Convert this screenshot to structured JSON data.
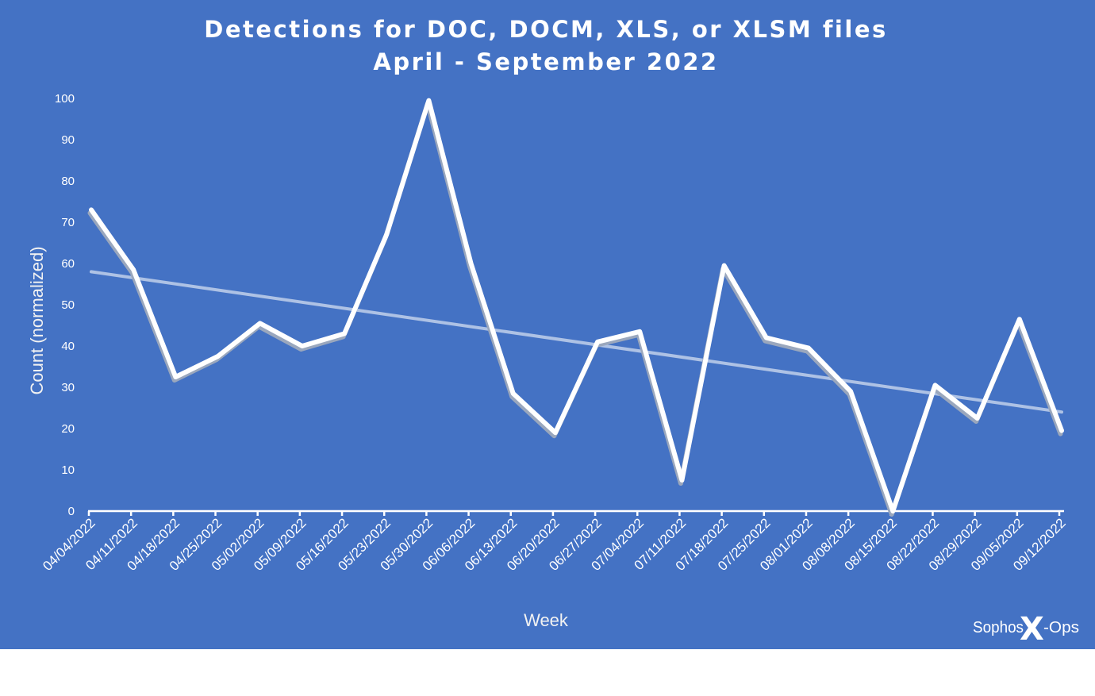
{
  "chart_data": {
    "type": "line",
    "title": "Detections for DOC, DOCM, XLS, or XLSM files",
    "subtitle": "April - September 2022",
    "xlabel": "Week",
    "ylabel": "Count (normalized)",
    "ylim": [
      0,
      100
    ],
    "yticks": [
      "0",
      "10",
      "20",
      "30",
      "40",
      "50",
      "60",
      "70",
      "80",
      "90",
      "100"
    ],
    "categories": [
      "04/04/2022",
      "04/11/2022",
      "04/18/2022",
      "04/25/2022",
      "05/02/2022",
      "05/09/2022",
      "05/16/2022",
      "05/23/2022",
      "05/30/2022",
      "06/06/2022",
      "06/13/2022",
      "06/20/2022",
      "06/27/2022",
      "07/04/2022",
      "07/11/2022",
      "07/18/2022",
      "07/25/2022",
      "08/01/2022",
      "08/08/2022",
      "08/15/2022",
      "08/22/2022",
      "08/29/2022",
      "09/05/2022",
      "09/12/2022"
    ],
    "series": [
      {
        "values": [
          73,
          58.5,
          32.5,
          37.5,
          45.5,
          40,
          43,
          67,
          99.5,
          60,
          28.5,
          19,
          41,
          43.5,
          7.5,
          59.5,
          42,
          39.5,
          29,
          0,
          30.5,
          22.5,
          46.5,
          19.5
        ]
      }
    ],
    "trendline": {
      "start": 58,
      "end": 24
    },
    "grid": false,
    "legend": "none",
    "colors": {
      "background": "#4472c4",
      "line": "#ffffff",
      "shadow": "#9aa7bd",
      "trend": "#b4c7e7",
      "drop_lines": "#ffffff"
    }
  },
  "logo": {
    "left": "Sophos",
    "mark": "X",
    "right": "-Ops"
  }
}
